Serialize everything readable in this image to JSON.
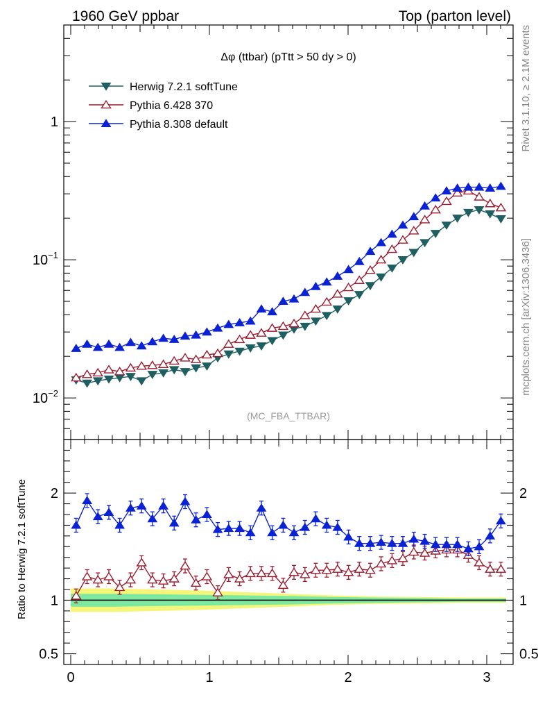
{
  "header": {
    "left_title": "1960 GeV ppbar",
    "right_title": "Top (parton level)"
  },
  "side_labels": {
    "rivet": "Rivet 3.1.10, ≥ 2.1M events",
    "mcplots": "mcplots.cern.ch [arXiv:1306.3436]"
  },
  "upper_panel": {
    "plot_title": "Δφ (ttbar) (pTtt > 50 dy > 0)",
    "watermark": "(MC_FBA_TTBAR)",
    "ytick_labels": [
      {
        "base": "10",
        "exp": "−2",
        "value": 0.01
      },
      {
        "base": "10",
        "exp": "−1",
        "value": 0.1
      },
      {
        "base": "1",
        "exp": "",
        "value": 1
      }
    ]
  },
  "lower_panel": {
    "ylabel": "Ratio to Herwig 7.2.1 softTune",
    "ytick_labels": [
      {
        "label": "0.5",
        "value": 0.5
      },
      {
        "label": "1",
        "value": 1
      },
      {
        "label": "2",
        "value": 2
      }
    ]
  },
  "xtick_labels": [
    "0",
    "1",
    "2",
    "3"
  ],
  "chart_data": [
    {
      "type": "line",
      "scale": "log",
      "ylim": [
        0.005,
        5
      ],
      "xlim": [
        -0.05,
        3.19
      ],
      "legend_position": "top-left",
      "x": [
        0.039,
        0.118,
        0.196,
        0.275,
        0.353,
        0.432,
        0.511,
        0.589,
        0.668,
        0.746,
        0.825,
        0.903,
        0.982,
        1.06,
        1.139,
        1.218,
        1.296,
        1.375,
        1.453,
        1.532,
        1.61,
        1.689,
        1.767,
        1.846,
        1.924,
        2.003,
        2.081,
        2.16,
        2.238,
        2.317,
        2.395,
        2.474,
        2.553,
        2.631,
        2.71,
        2.788,
        2.867,
        2.945,
        3.024,
        3.102
      ],
      "series": [
        {
          "name": "Herwig 7.2.1 softTune",
          "color": "#1f5f61",
          "marker": "triangle-down-filled",
          "values": [
            0.0135,
            0.0128,
            0.0133,
            0.0137,
            0.014,
            0.0143,
            0.0133,
            0.0148,
            0.0152,
            0.016,
            0.0155,
            0.0165,
            0.017,
            0.0195,
            0.0208,
            0.0218,
            0.023,
            0.0238,
            0.026,
            0.0285,
            0.0315,
            0.033,
            0.036,
            0.0395,
            0.044,
            0.0505,
            0.056,
            0.065,
            0.075,
            0.087,
            0.1,
            0.113,
            0.133,
            0.155,
            0.178,
            0.2,
            0.22,
            0.23,
            0.215,
            0.198
          ]
        },
        {
          "name": "Pythia 6.428 370",
          "color": "#9c1b2f",
          "marker": "triangle-up-open",
          "values": [
            0.014,
            0.0148,
            0.0152,
            0.016,
            0.0155,
            0.0165,
            0.017,
            0.0172,
            0.0175,
            0.0185,
            0.0195,
            0.019,
            0.0205,
            0.021,
            0.0245,
            0.0265,
            0.0285,
            0.0295,
            0.032,
            0.033,
            0.0345,
            0.0395,
            0.044,
            0.0495,
            0.0565,
            0.063,
            0.071,
            0.084,
            0.1,
            0.119,
            0.139,
            0.162,
            0.195,
            0.23,
            0.265,
            0.305,
            0.315,
            0.285,
            0.255,
            0.238
          ]
        },
        {
          "name": "Pythia 8.308 default",
          "color": "#0b22d4",
          "marker": "triangle-up-filled",
          "values": [
            0.0228,
            0.0245,
            0.0232,
            0.0245,
            0.0232,
            0.0252,
            0.0238,
            0.0255,
            0.027,
            0.0265,
            0.028,
            0.0285,
            0.03,
            0.032,
            0.034,
            0.035,
            0.036,
            0.044,
            0.042,
            0.05,
            0.052,
            0.058,
            0.064,
            0.069,
            0.076,
            0.085,
            0.097,
            0.115,
            0.133,
            0.153,
            0.178,
            0.205,
            0.245,
            0.28,
            0.315,
            0.33,
            0.335,
            0.335,
            0.33,
            0.34
          ]
        }
      ]
    },
    {
      "type": "line",
      "ylabel": "Ratio to Herwig 7.2.1 softTune",
      "ylim": [
        0.4,
        2.5
      ],
      "band": {
        "inner_halfwidth": [
          0.06,
          0.06,
          0.055,
          0.05,
          0.045,
          0.04,
          0.03,
          0.025,
          0.02,
          0.015,
          0.015
        ],
        "outer_halfwidth": [
          0.11,
          0.11,
          0.1,
          0.09,
          0.075,
          0.06,
          0.045,
          0.035,
          0.03,
          0.025,
          0.025
        ],
        "inner_color": "#7ce8a0",
        "outer_color": "#f5f57a"
      },
      "series": [
        {
          "name": "Pythia 6.428 370",
          "color": "#9c1b2f",
          "marker": "triangle-up-open",
          "values": [
            1.04,
            1.22,
            1.19,
            1.22,
            1.12,
            1.19,
            1.35,
            1.19,
            1.18,
            1.2,
            1.32,
            1.16,
            1.22,
            1.07,
            1.24,
            1.2,
            1.25,
            1.25,
            1.25,
            1.14,
            1.26,
            1.24,
            1.28,
            1.28,
            1.29,
            1.26,
            1.29,
            1.28,
            1.34,
            1.37,
            1.39,
            1.45,
            1.44,
            1.46,
            1.47,
            1.47,
            1.42,
            1.35,
            1.29,
            1.29
          ]
        },
        {
          "name": "Pythia 8.308 default",
          "color": "#0b22d4",
          "marker": "triangle-up-filled",
          "values": [
            1.7,
            1.93,
            1.78,
            1.82,
            1.7,
            1.86,
            1.88,
            1.76,
            1.88,
            1.72,
            1.92,
            1.75,
            1.8,
            1.66,
            1.67,
            1.67,
            1.63,
            1.86,
            1.63,
            1.7,
            1.63,
            1.68,
            1.76,
            1.7,
            1.68,
            1.59,
            1.53,
            1.53,
            1.54,
            1.53,
            1.53,
            1.57,
            1.55,
            1.52,
            1.52,
            1.52,
            1.48,
            1.5,
            1.6,
            1.74
          ]
        }
      ]
    }
  ]
}
